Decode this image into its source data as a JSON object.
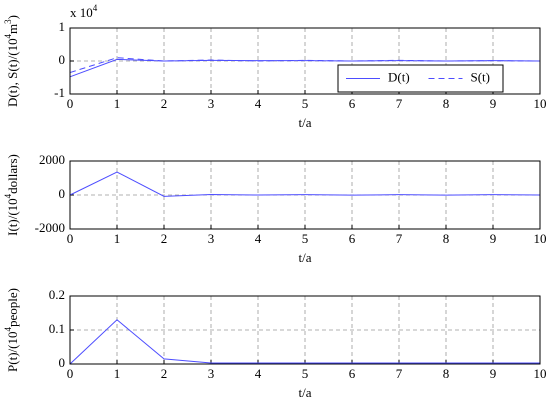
{
  "chart_data": [
    {
      "type": "line",
      "y_multiplier": [
        {
          "text": "x 10"
        },
        {
          "text": "4",
          "sup": true
        }
      ],
      "ylabel": [
        {
          "text": "D(t), S(t)/(10"
        },
        {
          "text": "4",
          "sup": true
        },
        {
          "text": "m"
        },
        {
          "text": "3",
          "sup": true
        },
        {
          "text": ")"
        }
      ],
      "xlabel": "t/a",
      "x": [
        0,
        1,
        2,
        3,
        4,
        5,
        6,
        7,
        8,
        9,
        10
      ],
      "xlim": [
        0,
        10
      ],
      "xticks": [
        0,
        1,
        2,
        3,
        4,
        5,
        6,
        7,
        8,
        9,
        10
      ],
      "ylim": [
        -1,
        1
      ],
      "yticks": [
        -1,
        0,
        1
      ],
      "grid": true,
      "legend": "lower right",
      "series": [
        {
          "name": "D(t)",
          "color": "#4d4dff",
          "dashed": false,
          "values": [
            -0.48,
            0.05,
            0.0,
            0.02,
            0.01,
            0.01,
            0.0,
            0.01,
            0.0,
            0.01,
            0.0
          ]
        },
        {
          "name": "S(t)",
          "color": "#4d4dff",
          "dashed": true,
          "values": [
            -0.35,
            0.1,
            0.0,
            0.03,
            0.0,
            0.02,
            0.0,
            0.02,
            0.0,
            0.01,
            0.0
          ]
        }
      ]
    },
    {
      "type": "line",
      "ylabel": [
        {
          "text": "I(t)/(10"
        },
        {
          "text": "4",
          "sup": true
        },
        {
          "text": "dollars)"
        }
      ],
      "xlabel": "t/a",
      "x": [
        0,
        1,
        2,
        3,
        4,
        5,
        6,
        7,
        8,
        9,
        10
      ],
      "xlim": [
        0,
        10
      ],
      "xticks": [
        0,
        1,
        2,
        3,
        4,
        5,
        6,
        7,
        8,
        9,
        10
      ],
      "ylim": [
        -2000,
        2000
      ],
      "yticks": [
        -2000,
        0,
        2000
      ],
      "grid": true,
      "series": [
        {
          "color": "#4d4dff",
          "dashed": false,
          "values": [
            0,
            1350,
            -80,
            30,
            0,
            20,
            -10,
            20,
            -10,
            20,
            0
          ]
        }
      ]
    },
    {
      "type": "line",
      "ylabel": [
        {
          "text": "P(t)/(10"
        },
        {
          "text": "4",
          "sup": true
        },
        {
          "text": "people)"
        }
      ],
      "xlabel": "t/a",
      "x": [
        0,
        1,
        2,
        3,
        4,
        5,
        6,
        7,
        8,
        9,
        10
      ],
      "xlim": [
        0,
        10
      ],
      "xticks": [
        0,
        1,
        2,
        3,
        4,
        5,
        6,
        7,
        8,
        9,
        10
      ],
      "ylim": [
        0,
        0.2
      ],
      "yticks": [
        0,
        0.1,
        0.2
      ],
      "grid": true,
      "series": [
        {
          "color": "#4d4dff",
          "dashed": false,
          "values": [
            0,
            0.13,
            0.015,
            0.003,
            0.003,
            0.003,
            0.003,
            0.003,
            0.003,
            0.003,
            0.003
          ]
        }
      ]
    }
  ]
}
